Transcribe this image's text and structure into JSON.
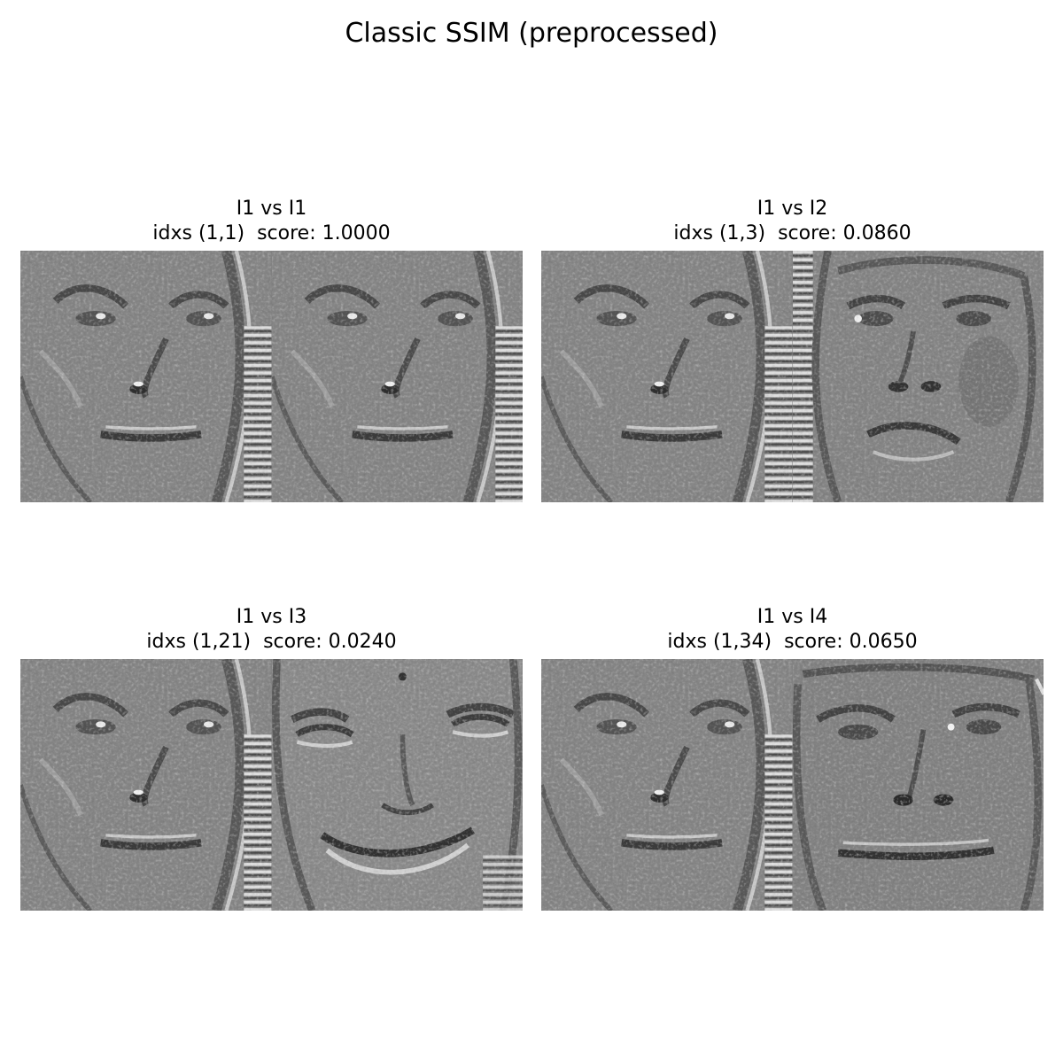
{
  "figure": {
    "title": "Classic SSIM (preprocessed)"
  },
  "panels": [
    {
      "title": "I1 vs I1",
      "subtitle": "idxs (1,1)  score: 1.0000",
      "left_image": "face-I1",
      "right_image": "face-I1",
      "score": 1.0
    },
    {
      "title": "I1 vs I2",
      "subtitle": "idxs (1,3)  score: 0.0860",
      "left_image": "face-I1",
      "right_image": "face-I2",
      "score": 0.086
    },
    {
      "title": "I1 vs I3",
      "subtitle": "idxs (1,21)  score: 0.0240",
      "left_image": "face-I1",
      "right_image": "face-I3",
      "score": 0.024
    },
    {
      "title": "I1 vs I4",
      "subtitle": "idxs (1,34)  score: 0.0650",
      "left_image": "face-I1",
      "right_image": "face-I4",
      "score": 0.065
    }
  ],
  "colors": {
    "background": "#ffffff",
    "image_gray": "#7f7f7f"
  }
}
